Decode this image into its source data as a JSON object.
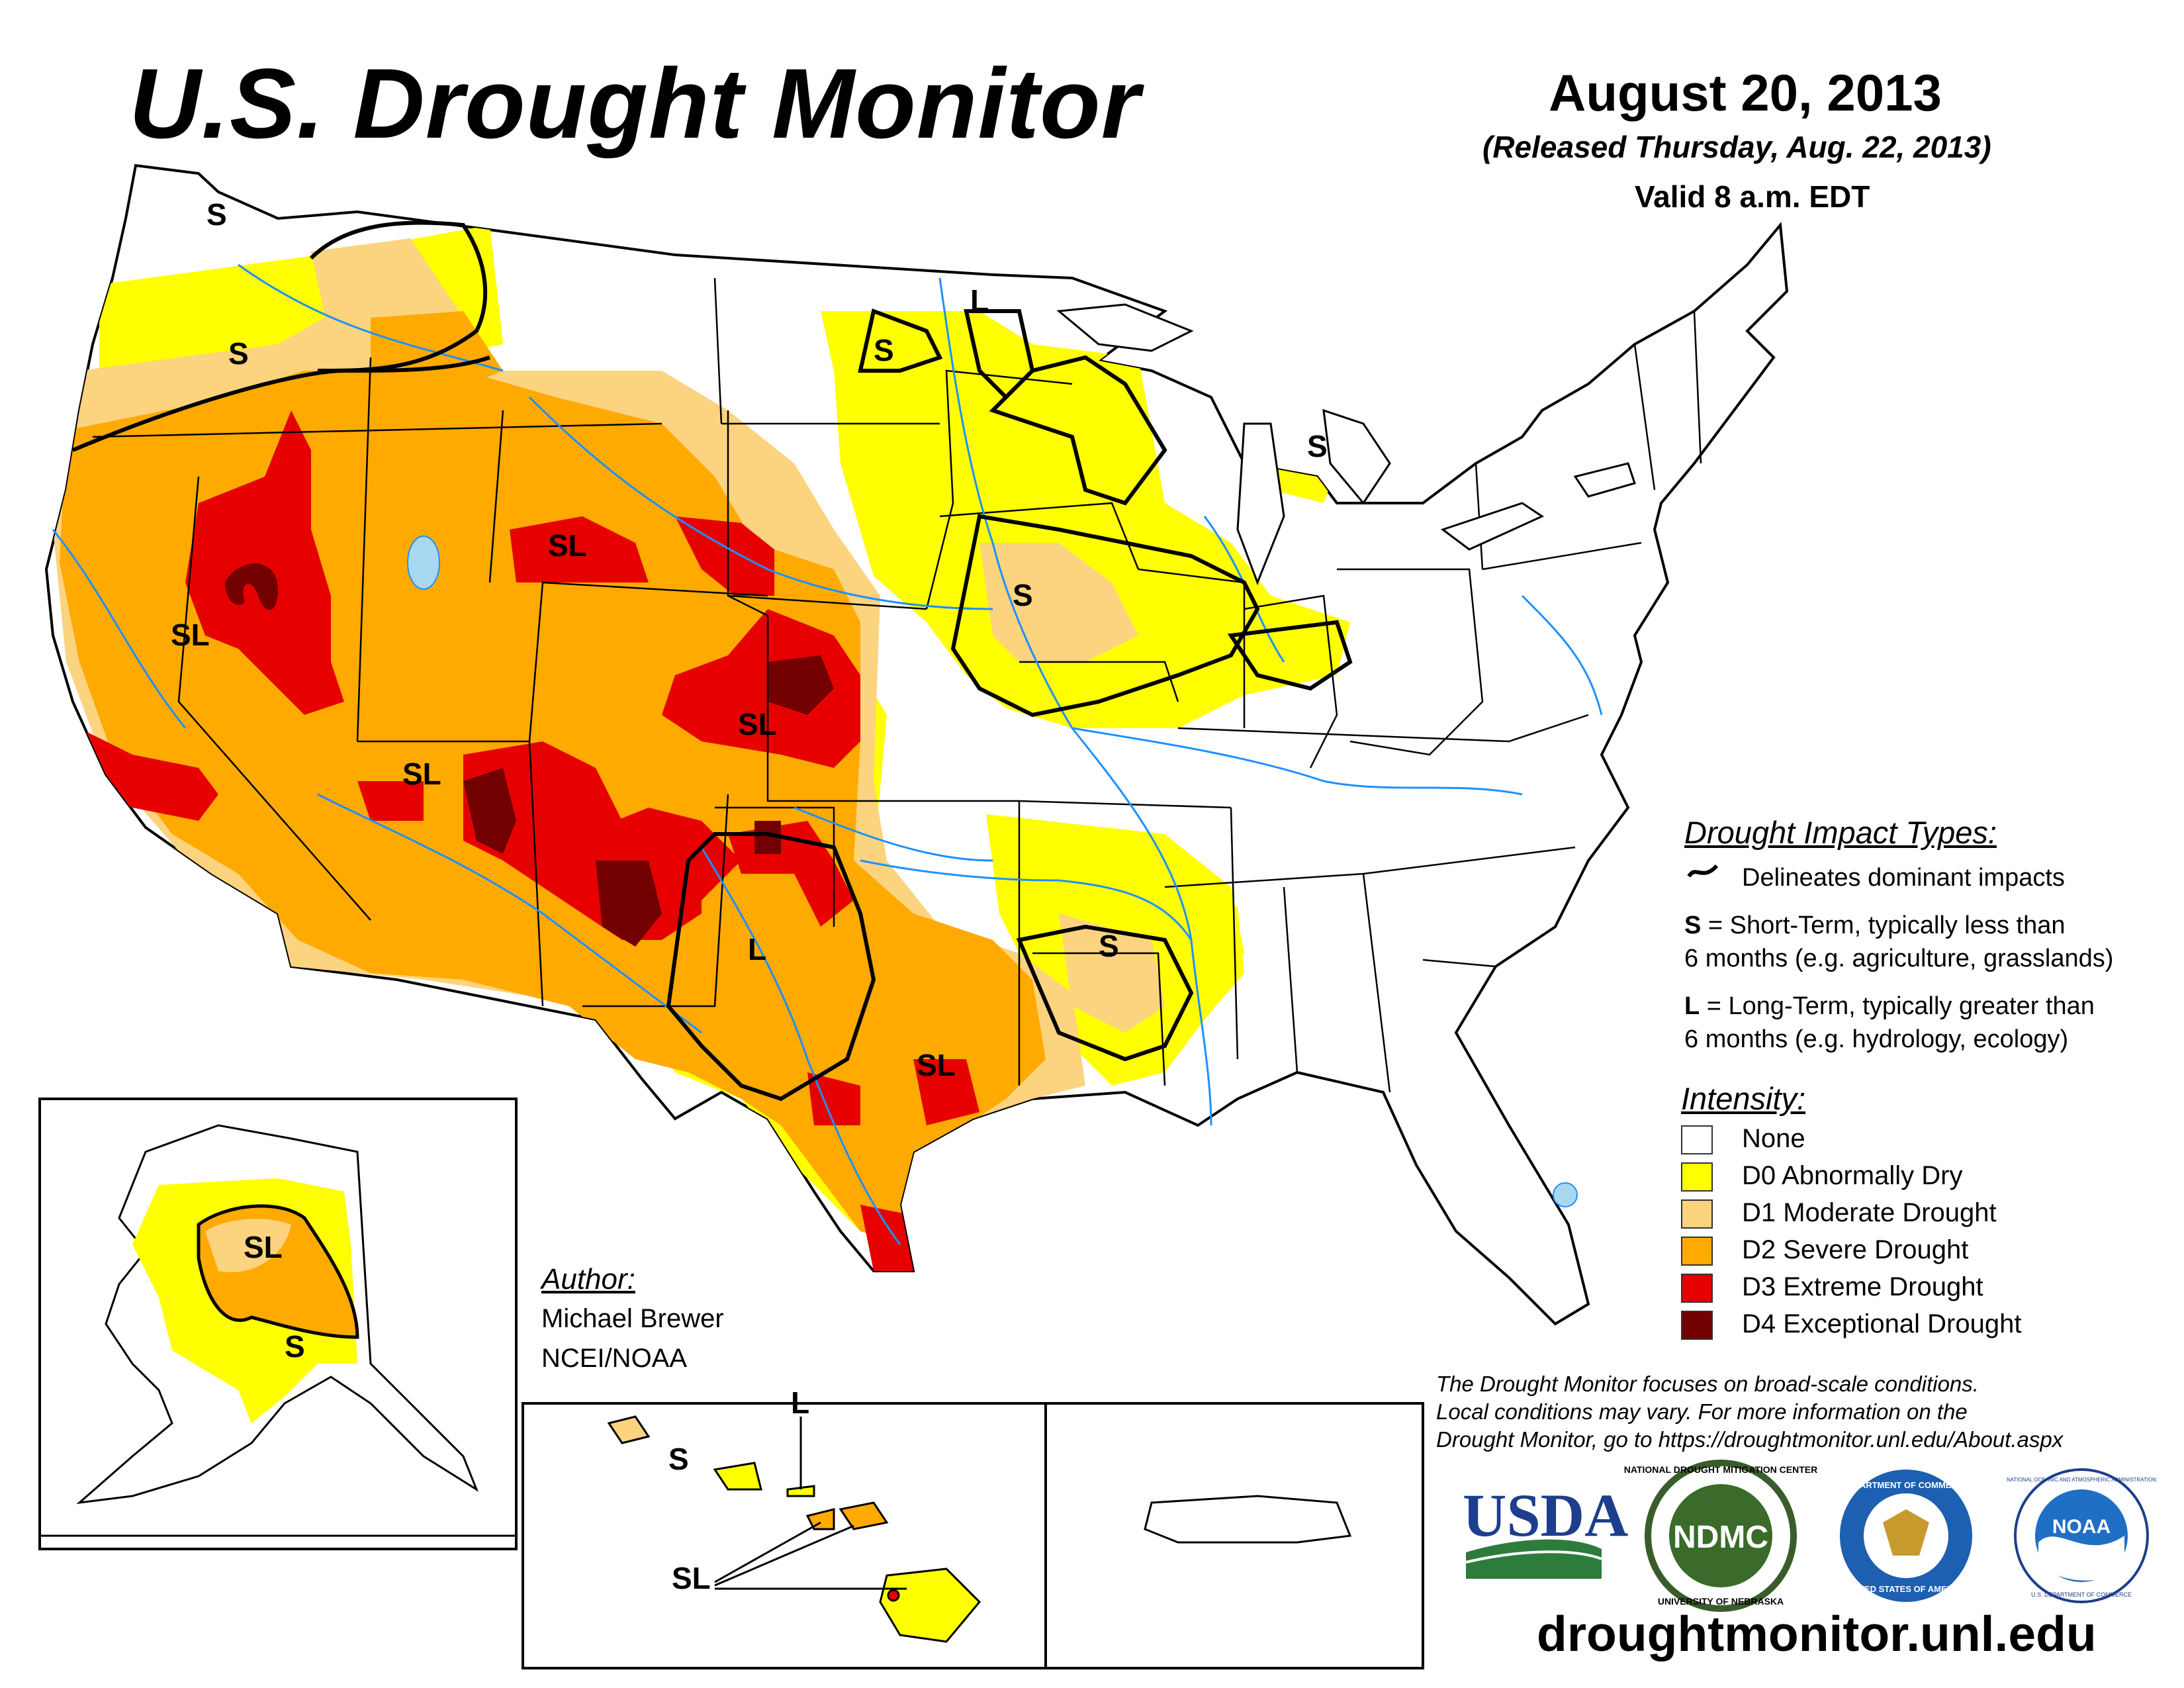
{
  "header": {
    "title": "U.S. Drought Monitor",
    "date": "August 20, 2013",
    "released": "(Released Thursday, Aug. 22, 2013)",
    "valid": "Valid 8 a.m. EDT"
  },
  "map_labels": {
    "wa_s": "S",
    "nw_s": "S",
    "mn_l": "L",
    "nd_s": "S",
    "mi_s": "S",
    "wy_sl": "SL",
    "nv_sl": "SL",
    "ia_s": "S",
    "co_sl": "SL",
    "az_sl": "SL",
    "nm_l": "L",
    "ar_s": "S",
    "tx_sl": "SL",
    "ak_sl": "SL",
    "ak_s": "S",
    "hi_l": "L",
    "hi_s": "S",
    "hi_sl": "SL"
  },
  "impact_legend": {
    "heading": "Drought Impact Types:",
    "delineates": "Delineates dominant impacts",
    "s_code": "S",
    "s_line1": " = Short-Term, typically less than",
    "s_line2": "6 months (e.g. agriculture, grasslands)",
    "l_code": "L",
    "l_line1": " = Long-Term, typically greater than",
    "l_line2": "6 months (e.g. hydrology, ecology)"
  },
  "intensity_legend": {
    "heading": "Intensity:",
    "items": [
      {
        "label": "None",
        "color": "#ffffff"
      },
      {
        "label": "D0 Abnormally Dry",
        "color": "#ffff00"
      },
      {
        "label": "D1 Moderate Drought",
        "color": "#fcd37f"
      },
      {
        "label": "D2 Severe Drought",
        "color": "#ffaa00"
      },
      {
        "label": "D3 Extreme Drought",
        "color": "#e60000"
      },
      {
        "label": "D4 Exceptional Drought",
        "color": "#730000"
      }
    ]
  },
  "author": {
    "heading": "Author:",
    "name": "Michael Brewer",
    "org": "NCEI/NOAA"
  },
  "note": {
    "line1": "The Drought Monitor focuses on broad-scale conditions.",
    "line2": "Local conditions may vary. For more information on the",
    "line3": "Drought Monitor, go to https://droughtmonitor.unl.edu/About.aspx"
  },
  "logos": {
    "usda": "USDA",
    "ndmc": "NDMC",
    "ndmc_ring_top": "NATIONAL DROUGHT MITIGATION CENTER",
    "ndmc_ring_bottom": "UNIVERSITY OF NEBRASKA",
    "doc_ring_top": "DEPARTMENT OF COMMERCE",
    "doc_ring_bottom": "UNITED STATES OF AMERICA",
    "noaa": "NOAA",
    "noaa_ring": "NATIONAL OCEANIC AND ATMOSPHERIC ADMINISTRATION",
    "noaa_ring_bottom": "U.S. DEPARTMENT OF COMMERCE"
  },
  "website": "droughtmonitor.unl.edu",
  "colors": {
    "none": "#ffffff",
    "d0": "#ffff00",
    "d1": "#fcd37f",
    "d2": "#ffaa00",
    "d3": "#e60000",
    "d4": "#730000",
    "water": "#1e90ff",
    "lake": "#a8d8f0"
  }
}
